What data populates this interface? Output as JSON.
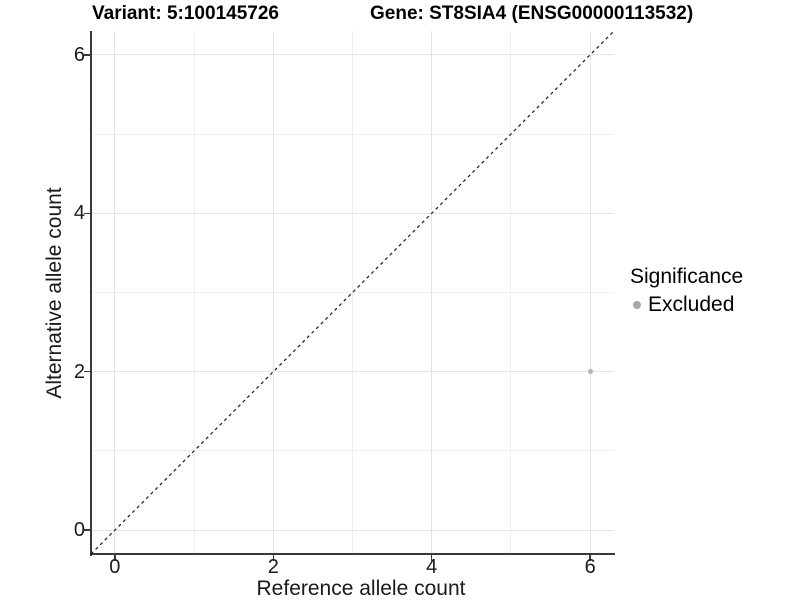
{
  "figure": {
    "title_left": "Variant: 5:100145726",
    "title_right": "Gene: ST8SIA4 (ENSG00000113532)"
  },
  "legend": {
    "title": "Significance",
    "items": [
      {
        "label": "Excluded",
        "color": "#a9a9a9"
      }
    ]
  },
  "colors": {
    "background": "#ffffff",
    "grid_major": "#e4e4e4",
    "grid_minor": "#efefef",
    "axis_line": "#3a3a3a",
    "tick_text": "#1a1a1a",
    "dashed_line": "#1a1a1a",
    "point": "#b3b3b3"
  },
  "chart_data": {
    "type": "scatter",
    "title": "Variant: 5:100145726 | Gene: ST8SIA4 (ENSG00000113532)",
    "xlabel": "Reference allele count",
    "ylabel": "Alternative allele count",
    "xlim": [
      -0.3,
      6.3
    ],
    "ylim": [
      -0.3,
      6.3
    ],
    "x_major_ticks": [
      0,
      2,
      4,
      6
    ],
    "x_minor_ticks": [
      1,
      3,
      5
    ],
    "y_major_ticks": [
      0,
      2,
      4,
      6
    ],
    "y_minor_ticks": [
      1,
      3,
      5
    ],
    "grid": "on",
    "legend_position": "right",
    "reference_line": {
      "type": "identity",
      "equation": "y = x",
      "style": "dashed",
      "from": [
        -0.3,
        -0.3
      ],
      "to": [
        6.3,
        6.3
      ]
    },
    "series": [
      {
        "name": "Excluded",
        "color": "#b3b3b3",
        "points": [
          {
            "x": 6,
            "y": 2
          }
        ]
      }
    ]
  }
}
